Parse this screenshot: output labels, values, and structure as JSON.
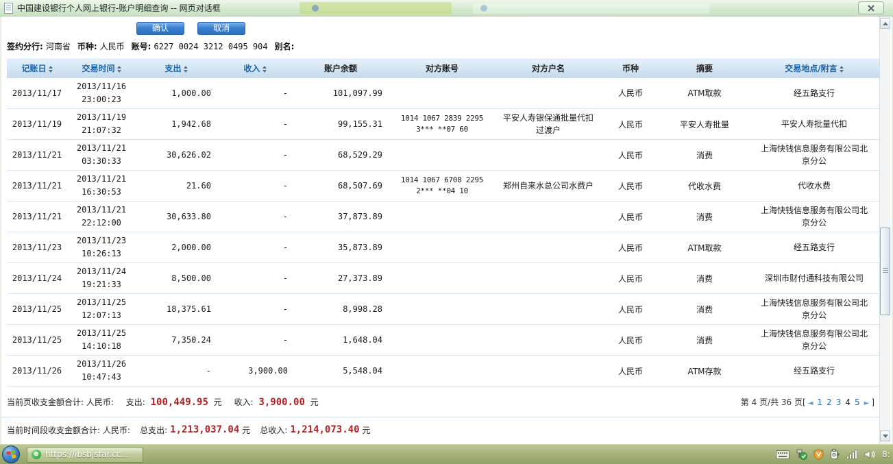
{
  "window": {
    "title": "中国建设银行个人网上银行-账户明细查询 -- 网页对话框"
  },
  "toolbar": {
    "confirm_label": "确认",
    "cancel_label": "取消"
  },
  "account_info": {
    "branch_label": "签约分行:",
    "branch_value": "河南省",
    "currency_label": "币种:",
    "currency_value": "人民币",
    "account_label": "账号:",
    "account_value": "6227 0024 3212 0495 904",
    "alias_label": "别名:",
    "alias_value": ""
  },
  "table": {
    "headers": [
      {
        "label": "记账日",
        "sortable": true
      },
      {
        "label": "交易时间",
        "sortable": true
      },
      {
        "label": "支出",
        "sortable": true
      },
      {
        "label": "收入",
        "sortable": true
      },
      {
        "label": "账户余额",
        "sortable": false
      },
      {
        "label": "对方账号",
        "sortable": false
      },
      {
        "label": "对方户名",
        "sortable": false
      },
      {
        "label": "币种",
        "sortable": false
      },
      {
        "label": "摘要",
        "sortable": false
      },
      {
        "label": "交易地点/附言",
        "sortable": true
      }
    ],
    "rows": [
      {
        "posting_date": "2013/11/17",
        "trans_date": "2013/11/16",
        "trans_time": "23:00:23",
        "outflow": "1,000.00",
        "inflow": "-",
        "balance": "101,097.99",
        "counterparty_account": "",
        "counterparty_name": "",
        "currency": "人民币",
        "summary": "ATM取款",
        "location": "经五路支行"
      },
      {
        "posting_date": "2013/11/19",
        "trans_date": "2013/11/19",
        "trans_time": "21:07:32",
        "outflow": "1,942.68",
        "inflow": "-",
        "balance": "99,155.31",
        "counterparty_account": "1014 1067 2839 2295 3*** **07 60",
        "counterparty_name": "平安人寿银保通批量代扣过渡户",
        "currency": "人民币",
        "summary": "平安人寿批量",
        "location": "平安人寿批量代扣"
      },
      {
        "posting_date": "2013/11/21",
        "trans_date": "2013/11/21",
        "trans_time": "03:30:33",
        "outflow": "30,626.02",
        "inflow": "-",
        "balance": "68,529.29",
        "counterparty_account": "",
        "counterparty_name": "",
        "currency": "人民币",
        "summary": "消费",
        "location": "上海快钱信息服务有限公司北京分公"
      },
      {
        "posting_date": "2013/11/21",
        "trans_date": "2013/11/21",
        "trans_time": "16:30:53",
        "outflow": "21.60",
        "inflow": "-",
        "balance": "68,507.69",
        "counterparty_account": "1014 1067 6708 2295 2*** **04 10",
        "counterparty_name": "郑州自来水总公司水费户",
        "currency": "人民币",
        "summary": "代收水费",
        "location": "代收水费"
      },
      {
        "posting_date": "2013/11/21",
        "trans_date": "2013/11/21",
        "trans_time": "22:12:00",
        "outflow": "30,633.80",
        "inflow": "-",
        "balance": "37,873.89",
        "counterparty_account": "",
        "counterparty_name": "",
        "currency": "人民币",
        "summary": "消费",
        "location": "上海快钱信息服务有限公司北京分公"
      },
      {
        "posting_date": "2013/11/23",
        "trans_date": "2013/11/23",
        "trans_time": "10:26:13",
        "outflow": "2,000.00",
        "inflow": "-",
        "balance": "35,873.89",
        "counterparty_account": "",
        "counterparty_name": "",
        "currency": "人民币",
        "summary": "ATM取款",
        "location": "经五路支行"
      },
      {
        "posting_date": "2013/11/24",
        "trans_date": "2013/11/24",
        "trans_time": "19:21:33",
        "outflow": "8,500.00",
        "inflow": "-",
        "balance": "27,373.89",
        "counterparty_account": "",
        "counterparty_name": "",
        "currency": "人民币",
        "summary": "消费",
        "location": "深圳市财付通科技有限公司"
      },
      {
        "posting_date": "2013/11/25",
        "trans_date": "2013/11/25",
        "trans_time": "12:07:13",
        "outflow": "18,375.61",
        "inflow": "-",
        "balance": "8,998.28",
        "counterparty_account": "",
        "counterparty_name": "",
        "currency": "人民币",
        "summary": "消费",
        "location": "上海快钱信息服务有限公司北京分公"
      },
      {
        "posting_date": "2013/11/25",
        "trans_date": "2013/11/25",
        "trans_time": "14:10:18",
        "outflow": "7,350.24",
        "inflow": "-",
        "balance": "1,648.04",
        "counterparty_account": "",
        "counterparty_name": "",
        "currency": "人民币",
        "summary": "消费",
        "location": "上海快钱信息服务有限公司北京分公"
      },
      {
        "posting_date": "2013/11/26",
        "trans_date": "2013/11/26",
        "trans_time": "10:47:43",
        "outflow": "-",
        "inflow": "3,900.00",
        "balance": "5,548.04",
        "counterparty_account": "",
        "counterparty_name": "",
        "currency": "人民币",
        "summary": "ATM存款",
        "location": "经五路支行"
      }
    ]
  },
  "page_summary": {
    "label": "当前页收支金额合计:",
    "currency": "人民币:",
    "out_label": "支出:",
    "out_value": "100,449.95",
    "out_unit": "元",
    "in_label": "收入:",
    "in_value": "3,900.00",
    "in_unit": "元"
  },
  "period_summary": {
    "label": "当前时间段收支金额合计:",
    "currency": "人民币:",
    "out_label": "总支出:",
    "out_value": "1,213,037.04",
    "out_unit": "元",
    "in_label": "总收入:",
    "in_value": "1,214,073.40",
    "in_unit": "元"
  },
  "pagination": {
    "label": "第 4 页/共 36 页",
    "bracket_open": "[",
    "bracket_close": "]",
    "prev_icon": "◄",
    "next_icon": "►",
    "pages": [
      "1",
      "2",
      "3",
      "4",
      "5"
    ],
    "current": "4"
  },
  "taskbar": {
    "task_button_label": "https://ibsbjstar.cc...",
    "browser_icon_glyph": "e",
    "clock": "8:",
    "tray_icons": [
      "keyboard-icon",
      "usb-device-icon",
      "security-shield-icon",
      "power-plug-icon",
      "network-signal-icon",
      "volume-icon"
    ]
  },
  "colors": {
    "button_blue": "#2a6fbe",
    "header_text_blue": "#1763ad",
    "header_bg_blue": "#cde0f0",
    "amount_red": "#b22222",
    "link_blue": "#2b6cb0",
    "taskbar_green": "#a6b57b"
  }
}
